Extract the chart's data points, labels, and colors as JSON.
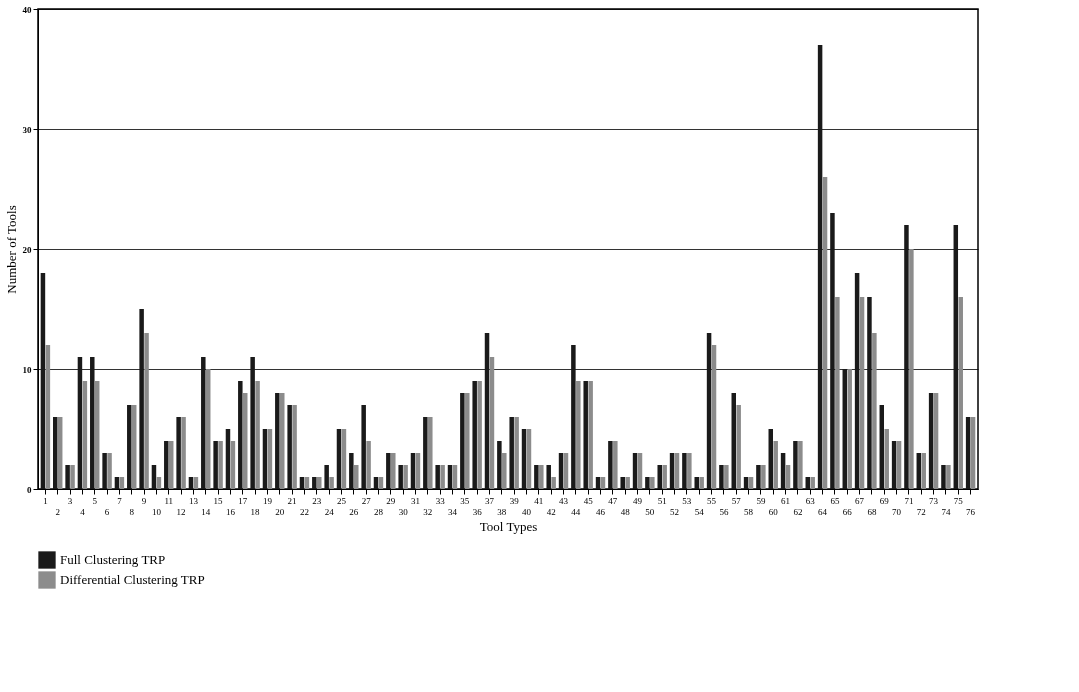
{
  "chart_data": {
    "type": "bar",
    "xlabel": "Tool Types",
    "ylabel": "Number of Tools",
    "categories": [
      "1",
      "2",
      "3",
      "4",
      "5",
      "6",
      "7",
      "8",
      "9",
      "10",
      "11",
      "12",
      "13",
      "14",
      "15",
      "16",
      "17",
      "18",
      "19",
      "20",
      "21",
      "22",
      "23",
      "24",
      "25",
      "26",
      "27",
      "28",
      "29",
      "30",
      "31",
      "32",
      "33",
      "34",
      "35",
      "36",
      "37",
      "38",
      "39",
      "40",
      "41",
      "42",
      "43",
      "44",
      "45",
      "46",
      "47",
      "48",
      "49",
      "50",
      "51",
      "52",
      "53",
      "54",
      "55",
      "56",
      "57",
      "58",
      "59",
      "60",
      "61",
      "62",
      "63",
      "64",
      "65",
      "66",
      "67",
      "68",
      "69",
      "70",
      "71",
      "72",
      "73",
      "74",
      "75",
      "76"
    ],
    "series": [
      {
        "name": "Full Clustering TRP",
        "color": "#1a1a1a",
        "values": [
          18,
          6,
          2,
          11,
          11,
          3,
          1,
          7,
          15,
          2,
          4,
          6,
          1,
          11,
          4,
          5,
          9,
          11,
          5,
          8,
          7,
          1,
          1,
          2,
          5,
          3,
          7,
          1,
          3,
          2,
          3,
          6,
          2,
          2,
          8,
          9,
          13,
          4,
          6,
          5,
          2,
          2,
          3,
          12,
          9,
          1,
          4,
          1,
          3,
          1,
          2,
          3,
          3,
          1,
          13,
          2,
          8,
          1,
          2,
          5,
          3,
          4,
          1,
          37,
          23,
          10,
          18,
          16,
          7,
          4,
          22,
          3,
          8,
          2,
          22,
          6
        ]
      },
      {
        "name": "Differential Clustering TRP",
        "color": "#8c8c8c",
        "values": [
          12,
          6,
          2,
          9,
          9,
          3,
          1,
          7,
          13,
          1,
          4,
          6,
          1,
          10,
          4,
          4,
          8,
          9,
          5,
          8,
          7,
          1,
          1,
          1,
          5,
          2,
          4,
          1,
          3,
          2,
          3,
          6,
          2,
          2,
          8,
          9,
          11,
          3,
          6,
          5,
          2,
          1,
          3,
          9,
          9,
          1,
          4,
          1,
          3,
          1,
          2,
          3,
          3,
          1,
          12,
          2,
          7,
          1,
          2,
          4,
          2,
          4,
          1,
          26,
          16,
          10,
          16,
          13,
          5,
          4,
          20,
          3,
          8,
          2,
          16,
          6
        ]
      }
    ],
    "ylim": [
      0,
      40
    ],
    "yticks": [
      0,
      10,
      20,
      30,
      40
    ],
    "grid": "y",
    "legend": "bottom"
  }
}
